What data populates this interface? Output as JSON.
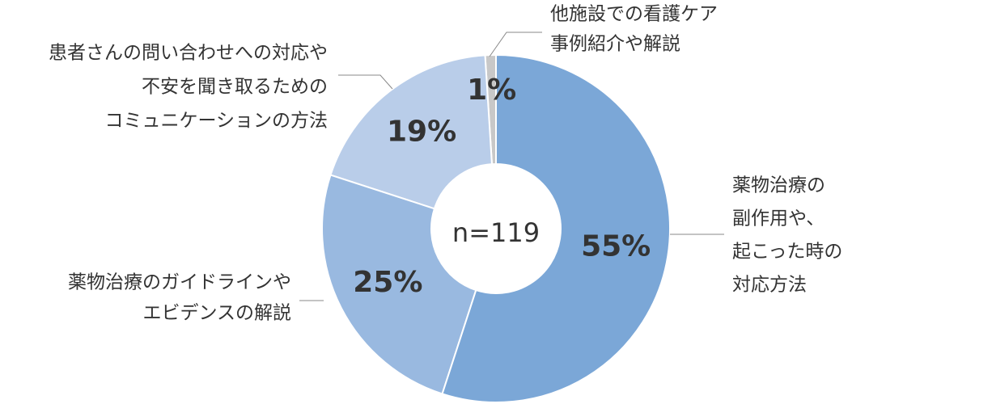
{
  "chart_data": {
    "type": "donut",
    "categories": [
      [
        "薬物治療の",
        "副作用や、",
        "起こった時の",
        "対応方法"
      ],
      [
        "薬物治療のガイドラインや",
        "エビデンスの解説"
      ],
      [
        "患者さんの問い合わせへの対応や",
        "不安を聞き取るための",
        "コミュニケーションの方法"
      ],
      [
        "他施設での看護ケア",
        "事例紹介や解説"
      ]
    ],
    "values": [
      55,
      25,
      19,
      1
    ],
    "value_labels": [
      "55%",
      "25%",
      "19%",
      "1%"
    ],
    "colors": [
      "#7ba7d7",
      "#99b9e0",
      "#b9cde9",
      "#c8c8c8"
    ],
    "center_label": "n=119"
  }
}
